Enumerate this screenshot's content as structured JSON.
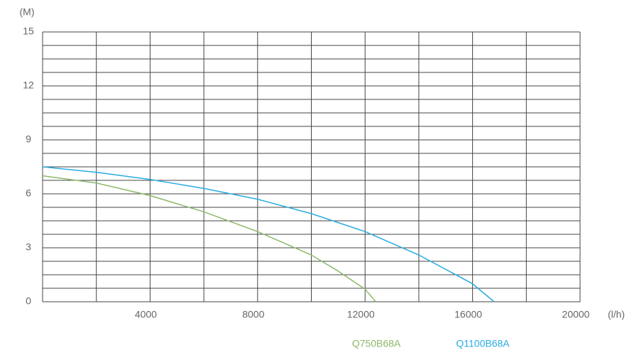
{
  "chart_data": {
    "type": "line",
    "y_unit": "(M)",
    "x_unit": "(l/h)",
    "xlim": [
      0,
      20000
    ],
    "ylim": [
      0,
      15
    ],
    "xticks": [
      4000,
      8000,
      12000,
      16000,
      20000
    ],
    "yticks": [
      0,
      3,
      6,
      9,
      12,
      15
    ],
    "xgrid": [
      0,
      2000,
      4000,
      6000,
      8000,
      10000,
      12000,
      14000,
      16000,
      18000,
      20000
    ],
    "ygrid": [
      0,
      0.75,
      1.5,
      2.25,
      3,
      3.75,
      4.5,
      5.25,
      6,
      6.75,
      7.5,
      8.25,
      9,
      9.75,
      10.5,
      11.25,
      12,
      12.75,
      13.5,
      14.25,
      15
    ],
    "series": [
      {
        "name": "Q750B68A",
        "color": "#8db86a",
        "x": [
          0,
          2000,
          4000,
          6000,
          8000,
          10000,
          11000,
          12000,
          12400
        ],
        "values": [
          7.0,
          6.6,
          5.9,
          5.0,
          3.9,
          2.6,
          1.7,
          0.7,
          0
        ]
      },
      {
        "name": "Q1100B68A",
        "color": "#29abe2",
        "x": [
          0,
          2000,
          4000,
          6000,
          8000,
          10000,
          12000,
          14000,
          16000,
          16800
        ],
        "values": [
          7.5,
          7.2,
          6.8,
          6.3,
          5.7,
          4.9,
          3.9,
          2.6,
          1.0,
          0
        ]
      }
    ]
  }
}
